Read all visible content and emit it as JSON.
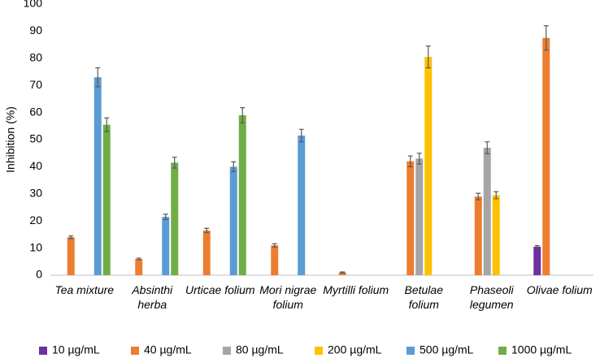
{
  "chart_data": {
    "type": "bar",
    "y_label": "Inhibition (%)",
    "categories": [
      "Tea mixture",
      "Absinthi herba",
      "Urticae folium",
      "Mori nigrae folium",
      "Myrtilli folium",
      "Betulae folium",
      "Phaseoli legumen",
      "Olivae folium"
    ],
    "series": [
      {
        "name": "10 µg/mL",
        "color": "#7030a0",
        "values": [
          null,
          null,
          null,
          null,
          null,
          null,
          null,
          10.5
        ],
        "errors": [
          null,
          null,
          null,
          null,
          null,
          null,
          null,
          0.4
        ]
      },
      {
        "name": "40 µg/mL",
        "color": "#ed7d31",
        "values": [
          14,
          6,
          16.5,
          11,
          1,
          42,
          29,
          87.5
        ],
        "errors": [
          0.5,
          0.3,
          0.8,
          0.6,
          0.2,
          2,
          1.2,
          4.5
        ]
      },
      {
        "name": "80 µg/mL",
        "color": "#a5a5a5",
        "values": [
          null,
          null,
          null,
          null,
          null,
          43,
          47,
          null
        ],
        "errors": [
          null,
          null,
          null,
          null,
          null,
          2,
          2.2,
          null
        ]
      },
      {
        "name": "200 µg/mL",
        "color": "#ffc000",
        "values": [
          null,
          null,
          null,
          null,
          null,
          80.5,
          29.5,
          null
        ],
        "errors": [
          null,
          null,
          null,
          null,
          null,
          4,
          1.3,
          null
        ]
      },
      {
        "name": "500 µg/mL",
        "color": "#5b9bd5",
        "values": [
          73,
          21.5,
          40,
          51.5,
          null,
          null,
          null,
          null
        ],
        "errors": [
          3.5,
          1,
          1.8,
          2.3,
          null,
          null,
          null,
          null
        ]
      },
      {
        "name": "1000 µg/mL",
        "color": "#70ad47",
        "values": [
          55.5,
          41.5,
          59,
          null,
          null,
          null,
          null,
          null
        ],
        "errors": [
          2.5,
          2,
          2.8,
          null,
          null,
          null,
          null,
          null
        ]
      }
    ],
    "ylim": [
      0,
      100
    ],
    "yticks": [
      0,
      10,
      20,
      30,
      40,
      50,
      60,
      70,
      80,
      90,
      100
    ],
    "grid": false,
    "legend": "bottom"
  }
}
